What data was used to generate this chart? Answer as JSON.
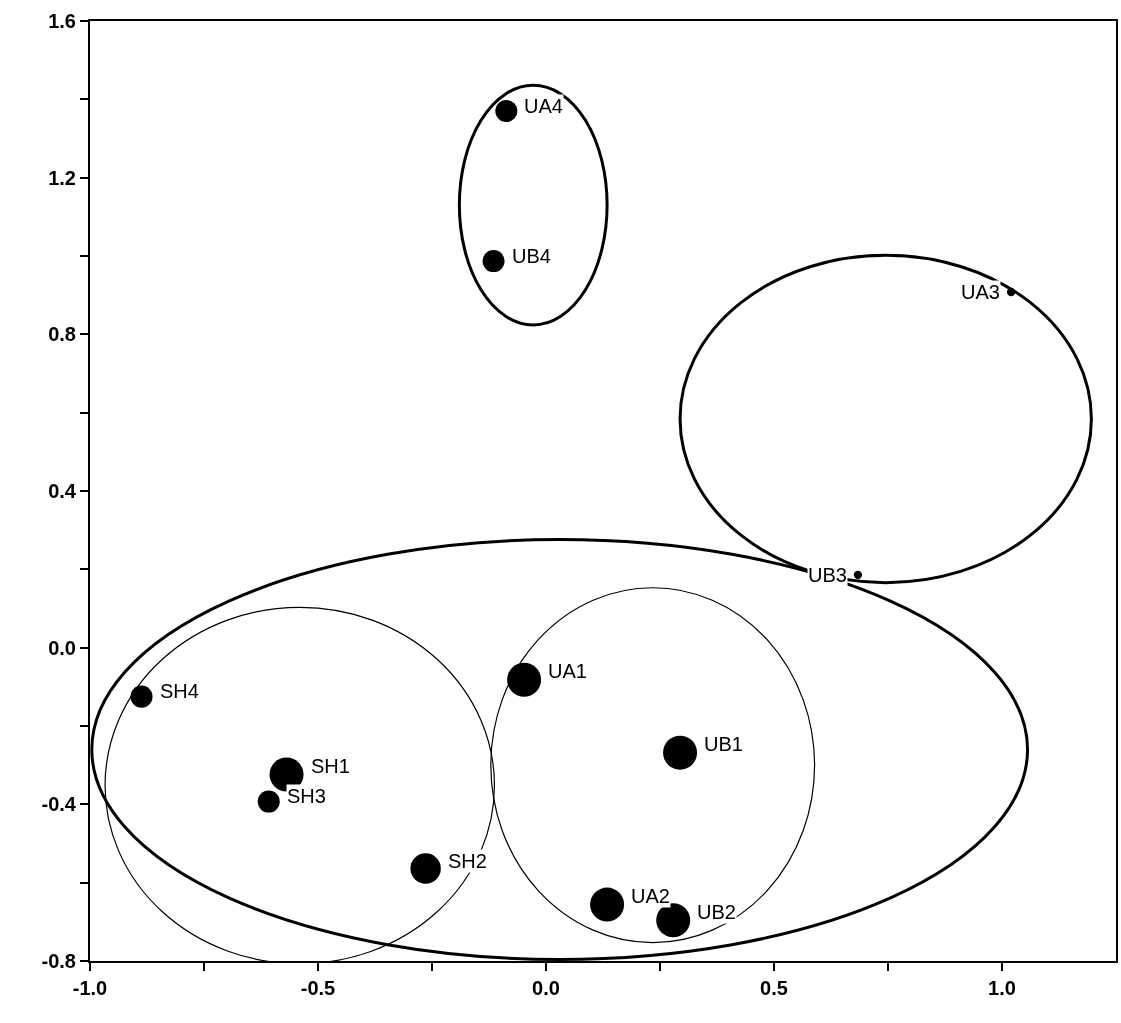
{
  "chart_data": {
    "type": "bubble",
    "x": [
      -0.087,
      -0.115,
      1.02,
      0.684,
      -0.048,
      0.294,
      -0.887,
      -0.569,
      -0.608,
      -0.264,
      0.134,
      0.279
    ],
    "series": [
      {
        "color": "#000000",
        "values": [
          1.37,
          0.987,
          0.908,
          0.186,
          -0.082,
          -0.268,
          -0.125,
          -0.324,
          -0.393,
          -0.564,
          -0.656,
          -0.696
        ],
        "sizes": [
          0.42,
          0.42,
          0.06,
          0.06,
          1,
          1,
          0.42,
          1,
          0.42,
          0.8,
          1,
          1
        ]
      }
    ],
    "marker": "circle",
    "xlim": [
      -1.0,
      1.25
    ],
    "xticks": [
      {
        "value": -1.0,
        "label": "-1.0"
      },
      {
        "value": -0.75,
        "label": null
      },
      {
        "value": -0.5,
        "label": "-0.5"
      },
      {
        "value": -0.25,
        "label": null
      },
      {
        "value": 0,
        "label": "0.0"
      },
      {
        "value": 0.25,
        "label": null
      },
      {
        "value": 0.5,
        "label": "0.5"
      },
      {
        "value": 0.75,
        "label": null
      },
      {
        "value": 1.0,
        "label": "1.0"
      }
    ],
    "ylim": [
      -0.8,
      1.6
    ],
    "yticks": [
      {
        "value": -0.8,
        "label": "-0.8"
      },
      {
        "value": -0.6,
        "label": null
      },
      {
        "value": -0.4,
        "label": "-0.4"
      },
      {
        "value": -0.2,
        "label": null
      },
      {
        "value": 0,
        "label": "0.0"
      },
      {
        "value": 0.2,
        "label": null
      },
      {
        "value": 0.4,
        "label": "0.4"
      },
      {
        "value": 0.6,
        "label": null
      },
      {
        "value": 0.8,
        "label": "0.8"
      },
      {
        "value": 1.0,
        "label": null
      },
      {
        "value": 1.2,
        "label": "1.2"
      },
      {
        "value": 1.4,
        "label": null
      },
      {
        "value": 1.6,
        "label": "1.6"
      }
    ],
    "grid": false,
    "annotations": [
      {
        "text": "UA4",
        "x": -0.087,
        "y": 1.37
      },
      {
        "text": "UB4",
        "x": -0.115,
        "y": 0.987
      },
      {
        "text": "UA3",
        "x": 1.02,
        "y": 0.908
      },
      {
        "text": "UB3",
        "x": 0.684,
        "y": 0.186
      },
      {
        "text": "UA1",
        "x": -0.048,
        "y": -0.082
      },
      {
        "text": "UB1",
        "x": 0.294,
        "y": -0.268
      },
      {
        "text": "SH4",
        "x": -0.887,
        "y": -0.125
      },
      {
        "text": "SH1",
        "x": -0.569,
        "y": -0.324
      },
      {
        "text": "SH3",
        "x": -0.608,
        "y": -0.393
      },
      {
        "text": "SH2",
        "x": -0.264,
        "y": -0.564
      },
      {
        "text": "UA2",
        "x": 0.134,
        "y": -0.656
      },
      {
        "text": "UB2",
        "x": 0.279,
        "y": -0.696
      }
    ]
  }
}
